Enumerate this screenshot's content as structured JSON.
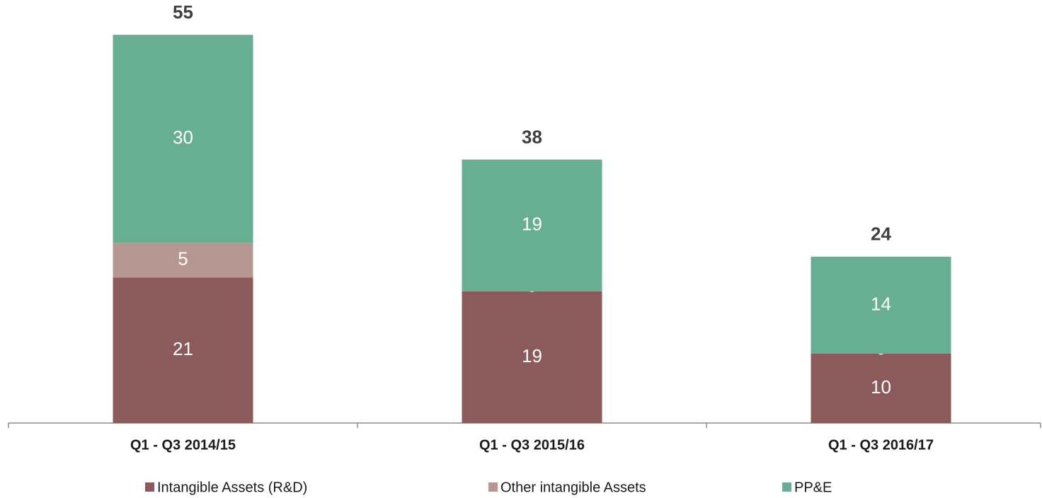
{
  "chart_data": {
    "type": "stacked-bar",
    "categories": [
      "Q1 - Q3 2014/15",
      "Q1 - Q3 2015/16",
      "Q1 - Q3 2016/17"
    ],
    "series": [
      {
        "name": "Intangible Assets (R&D)",
        "color": "#8b5a5a",
        "values": [
          21,
          19,
          10
        ]
      },
      {
        "name": "Other intangible Assets",
        "color": "#b59690",
        "values": [
          5,
          0,
          0
        ]
      },
      {
        "name": "PP&E",
        "color": "#67ae93",
        "values": [
          30,
          19,
          14
        ]
      }
    ],
    "totals": [
      55,
      38,
      24
    ],
    "legend": "bottom"
  }
}
